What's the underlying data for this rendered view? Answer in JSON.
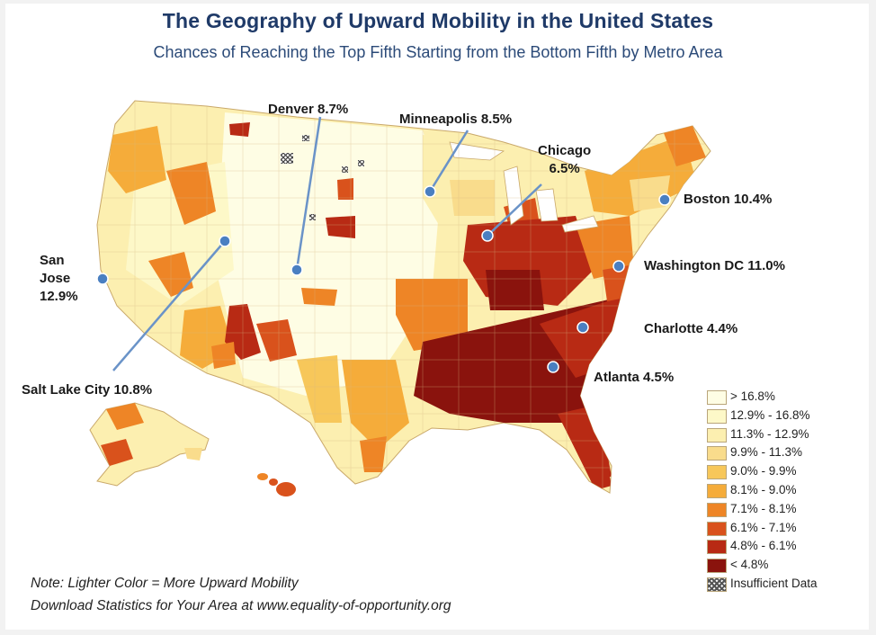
{
  "title": "The Geography of Upward Mobility in the United States",
  "subtitle": "Chances of Reaching the Top Fifth Starting from the Bottom Fifth by Metro Area",
  "cities": [
    {
      "id": "denver",
      "label": "Denver 8.7%"
    },
    {
      "id": "minneapolis",
      "label": "Minneapolis 8.5%"
    },
    {
      "id": "chicago",
      "label_line1": "Chicago",
      "label_line2": "6.5%"
    },
    {
      "id": "boston",
      "label": "Boston 10.4%"
    },
    {
      "id": "washington",
      "label": "Washington DC 11.0%"
    },
    {
      "id": "charlotte",
      "label": "Charlotte 4.4%"
    },
    {
      "id": "atlanta",
      "label": "Atlanta 4.5%"
    },
    {
      "id": "san-jose",
      "label_line1": "San",
      "label_line2": "Jose",
      "label_line3": "12.9%"
    },
    {
      "id": "salt-lake-city",
      "label": "Salt Lake City 10.8%"
    }
  ],
  "legend": [
    {
      "label": "> 16.8%",
      "color": "#fefde4"
    },
    {
      "label": "12.9% - 16.8%",
      "color": "#fdf8c8"
    },
    {
      "label": "11.3% - 12.9%",
      "color": "#fcefb0"
    },
    {
      "label": "9.9% - 11.3%",
      "color": "#f9dc8c"
    },
    {
      "label": "9.0% - 9.9%",
      "color": "#f7c75a"
    },
    {
      "label": "8.1% - 9.0%",
      "color": "#f5ac3a"
    },
    {
      "label": "7.1% - 8.1%",
      "color": "#ee8526"
    },
    {
      "label": "6.1% - 7.1%",
      "color": "#d9521c"
    },
    {
      "label": "4.8% - 6.1%",
      "color": "#b82a14"
    },
    {
      "label": "< 4.8%",
      "color": "#8a130d"
    },
    {
      "label": "Insufficient Data",
      "pattern": "hatch"
    }
  ],
  "note": {
    "line1": "Note: Lighter Color = More Upward Mobility",
    "line2": "Download Statistics for Your Area at www.equality-of-opportunity.org"
  },
  "colors": {
    "title": "#1f3a68",
    "marker": "#4a7fc1",
    "pointer": "#6a93c8"
  }
}
